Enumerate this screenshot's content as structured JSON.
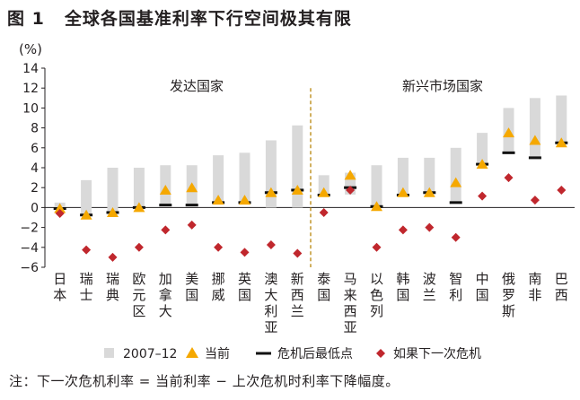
{
  "figure": {
    "label": "图 1",
    "title": "全球各国基准利率下行空间极其有限",
    "footnote": "注：下一次危机利率 = 当前利率 − 上次危机时利率下降幅度。"
  },
  "colors": {
    "range_bar": "#d9d9d9",
    "current": "#f5a800",
    "low": "#111111",
    "next_crisis": "#c0272d"
  },
  "chart_data": {
    "type": "bar",
    "ylabel": "(%)",
    "ylim": [
      -6,
      14
    ],
    "yticks": [
      -6,
      -4,
      -2,
      0,
      2,
      4,
      6,
      8,
      10,
      12,
      14
    ],
    "group_labels": [
      "发达国家",
      "新兴市场国家"
    ],
    "categories": [
      "日本",
      "瑞士",
      "瑞典",
      "欧元区",
      "加拿大",
      "美国",
      "挪威",
      "英国",
      "澳大利亚",
      "新西兰",
      "泰国",
      "马来西亚",
      "以色列",
      "韩国",
      "波兰",
      "智利",
      "中国",
      "俄罗斯",
      "南非",
      "巴西"
    ],
    "group_split_after": 10,
    "series": [
      {
        "name": "2007–12",
        "kind": "range",
        "low": [
          0,
          -0.75,
          -0.5,
          0,
          0.25,
          0.25,
          0.5,
          0.5,
          0,
          0,
          1.3,
          1.3,
          0.1,
          1.25,
          1.5,
          0.5,
          4.4,
          5.5,
          5,
          6.5
        ],
        "high": [
          0.5,
          2.75,
          4.0,
          4.0,
          4.25,
          4.25,
          5.25,
          5.5,
          6.75,
          8.25,
          3.25,
          3.5,
          4.25,
          5.0,
          5.0,
          6.0,
          7.5,
          10.0,
          11.0,
          11.25
        ]
      },
      {
        "name": "当前",
        "kind": "triangle",
        "values": [
          -0.1,
          -0.75,
          -0.5,
          0,
          1.75,
          2.0,
          0.75,
          0.75,
          1.5,
          1.75,
          1.5,
          3.25,
          0.1,
          1.5,
          1.5,
          2.5,
          4.35,
          7.5,
          6.75,
          6.5
        ]
      },
      {
        "name": "危机后最低点",
        "kind": "dash",
        "values": [
          -0.1,
          -0.75,
          -0.5,
          0,
          0.25,
          0.25,
          0.5,
          0.5,
          1.5,
          1.75,
          1.25,
          2.0,
          0.1,
          1.25,
          1.5,
          0.5,
          4.35,
          5.5,
          5.0,
          6.5
        ]
      },
      {
        "name": "如果下一次危机",
        "kind": "diamond",
        "values": [
          -0.6,
          -4.25,
          -5.0,
          -4.0,
          -2.25,
          -1.75,
          -4.0,
          -4.5,
          -3.75,
          -4.6,
          -0.5,
          1.75,
          -4.0,
          -2.25,
          -2.0,
          -3.0,
          1.15,
          3.0,
          0.75,
          1.75
        ]
      }
    ],
    "legend_position": "bottom",
    "grid": false
  }
}
